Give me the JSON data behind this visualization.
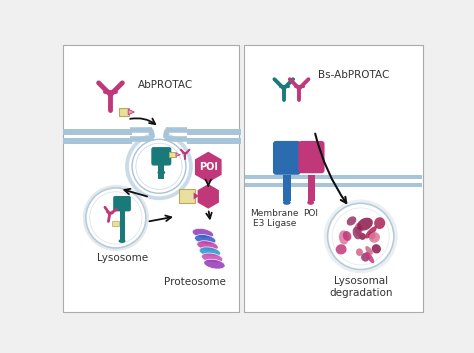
{
  "bg_color": "#f0f0f0",
  "panel_bg": "#ffffff",
  "mem_color": "#a8c4d8",
  "teal": "#1a7a7a",
  "magenta": "#c0387a",
  "blue": "#2b6cb0",
  "pink_light": "#e8a0c0",
  "linker_color": "#e8dfa0",
  "lyso_color": "#b8ccd8",
  "text_color": "#333333",
  "arrow_color": "#111111",
  "proteo_colors": [
    "#cc44aa",
    "#3366bb",
    "#8844bb",
    "#cc44aa",
    "#3366bb",
    "#ff88cc"
  ],
  "label_abprotac": "AbPROTAC",
  "label_bs": "Bs-AbPROTAC",
  "label_lysosome": "Lysosome",
  "label_proteosome": "Proteosome",
  "label_poi": "POI",
  "label_e3": "Membrane\nE3 Ligase",
  "label_poi_right": "POI",
  "label_lyso_deg": "Lysosomal\ndegradation"
}
